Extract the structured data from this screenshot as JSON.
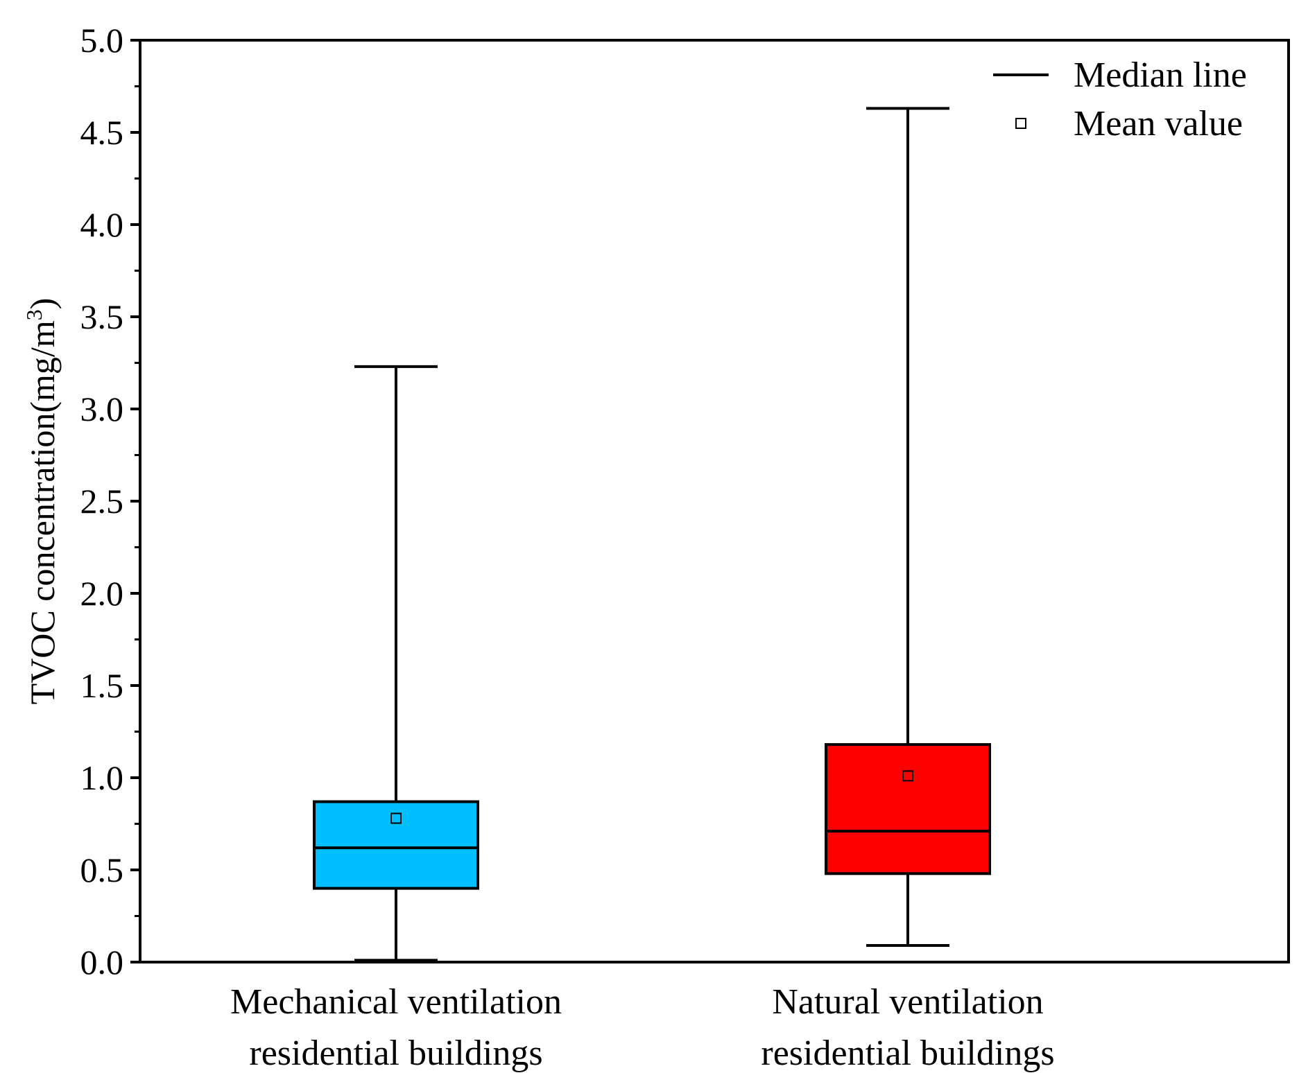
{
  "chart_data": {
    "type": "box",
    "title": "",
    "xlabel": "",
    "ylabel": {
      "text": "TVOC concentration(mg/m",
      "superscript": "3",
      "suffix": ")"
    },
    "ylim": [
      0.0,
      5.0
    ],
    "y_ticks": [
      "0.0",
      "0.5",
      "1.0",
      "1.5",
      "2.0",
      "2.5",
      "3.0",
      "3.5",
      "4.0",
      "4.5",
      "5.0"
    ],
    "y_tick_values": [
      0.0,
      0.5,
      1.0,
      1.5,
      2.0,
      2.5,
      3.0,
      3.5,
      4.0,
      4.5,
      5.0
    ],
    "minor_tick_step": 0.25,
    "grid": false,
    "legend": {
      "position": "top-right",
      "entries": [
        {
          "label": "Median line",
          "symbol": "line"
        },
        {
          "label": "Mean value",
          "symbol": "square"
        }
      ]
    },
    "boxes": [
      {
        "category_lines": [
          "Mechanical ventilation",
          "residential buildings"
        ],
        "min": 0.01,
        "q1": 0.4,
        "median": 0.62,
        "q3": 0.87,
        "max": 3.23,
        "mean": 0.78,
        "color": "#00BFFF"
      },
      {
        "category_lines": [
          "Natural ventilation",
          "residential buildings"
        ],
        "min": 0.09,
        "q1": 0.48,
        "median": 0.71,
        "q3": 1.18,
        "max": 4.63,
        "mean": 1.01,
        "color": "#FF0000"
      }
    ]
  }
}
